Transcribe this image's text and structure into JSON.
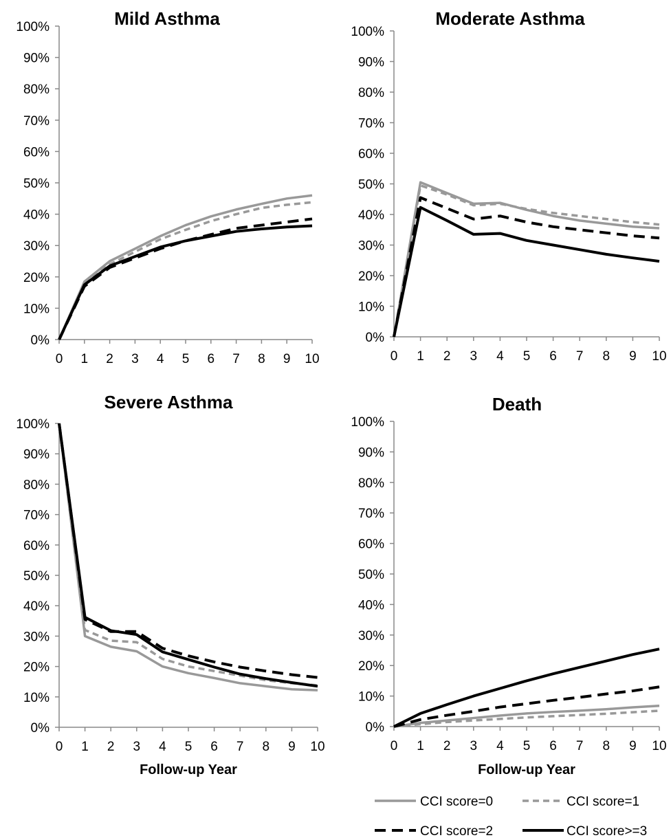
{
  "legend": {
    "entries": [
      {
        "label": "CCI score=0",
        "color": "#999999",
        "dash": "solid"
      },
      {
        "label": "CCI score=1",
        "color": "#999999",
        "dash": "dashed"
      },
      {
        "label": "CCI score=2",
        "color": "#000000",
        "dash": "dashed"
      },
      {
        "label": "CCI score>=3",
        "color": "#000000",
        "dash": "solid"
      }
    ]
  },
  "chart_data": [
    {
      "type": "line",
      "title": "Mild Asthma",
      "xlabel": "",
      "x": [
        0,
        1,
        2,
        3,
        4,
        5,
        6,
        7,
        8,
        9,
        10
      ],
      "ylim": [
        0,
        100
      ],
      "yticks": [
        "0%",
        "10%",
        "20%",
        "30%",
        "40%",
        "50%",
        "60%",
        "70%",
        "80%",
        "90%",
        "100%"
      ],
      "series": [
        {
          "name": "CCI score=0",
          "values": [
            0,
            18.5,
            25,
            29,
            33,
            36.5,
            39.3,
            41.5,
            43.3,
            45,
            46
          ]
        },
        {
          "name": "CCI score=1",
          "values": [
            0,
            18,
            24,
            28,
            32,
            35,
            37.8,
            40,
            42,
            43,
            43.8
          ]
        },
        {
          "name": "CCI score=2",
          "values": [
            0,
            17,
            23,
            26,
            29,
            31.5,
            33.5,
            35.5,
            36.5,
            37.5,
            38.5
          ]
        },
        {
          "name": "CCI score>=3",
          "values": [
            0,
            17.5,
            23.5,
            26.5,
            29.5,
            31.5,
            33,
            34.5,
            35.3,
            35.9,
            36.3
          ]
        }
      ]
    },
    {
      "type": "line",
      "title": "Moderate Asthma",
      "xlabel": "",
      "x": [
        0,
        1,
        2,
        3,
        4,
        5,
        6,
        7,
        8,
        9,
        10
      ],
      "ylim": [
        0,
        100
      ],
      "yticks": [
        "0%",
        "10%",
        "20%",
        "30%",
        "40%",
        "50%",
        "60%",
        "70%",
        "80%",
        "90%",
        "100%"
      ],
      "series": [
        {
          "name": "CCI score=0",
          "values": [
            0,
            50.5,
            47,
            43.5,
            43.8,
            41.5,
            39.5,
            38,
            37,
            36,
            35.5
          ]
        },
        {
          "name": "CCI score=1",
          "values": [
            0,
            49.5,
            46.5,
            43,
            43.5,
            41.8,
            40.5,
            39.5,
            38.5,
            37.5,
            36.7
          ]
        },
        {
          "name": "CCI score=2",
          "values": [
            0,
            45.5,
            42,
            38.5,
            39.5,
            37.5,
            36,
            35,
            34,
            33,
            32.3
          ]
        },
        {
          "name": "CCI score>=3",
          "values": [
            0,
            42.3,
            38,
            33.5,
            33.8,
            31.5,
            30,
            28.5,
            27,
            25.8,
            24.7
          ]
        }
      ]
    },
    {
      "type": "line",
      "title": "Severe Asthma",
      "xlabel": "Follow-up Year",
      "x": [
        0,
        1,
        2,
        3,
        4,
        5,
        6,
        7,
        8,
        9,
        10
      ],
      "ylim": [
        0,
        100
      ],
      "yticks": [
        "0%",
        "10%",
        "20%",
        "30%",
        "40%",
        "50%",
        "60%",
        "70%",
        "80%",
        "90%",
        "100%"
      ],
      "series": [
        {
          "name": "CCI score=0",
          "values": [
            100,
            30,
            26.5,
            25,
            20,
            17.8,
            16.2,
            14.5,
            13.5,
            12.5,
            12.2
          ]
        },
        {
          "name": "CCI score=1",
          "values": [
            100,
            32,
            28.5,
            28,
            22.5,
            20,
            18.5,
            17,
            15.5,
            14.5,
            13.8
          ]
        },
        {
          "name": "CCI score=2",
          "values": [
            100,
            35.5,
            31.5,
            31.5,
            26,
            23.5,
            21.5,
            19.8,
            18.5,
            17.3,
            16.4
          ]
        },
        {
          "name": "CCI score>=3",
          "values": [
            100,
            36.2,
            31.8,
            30.5,
            24.8,
            22.3,
            19.8,
            17.5,
            16,
            14.7,
            13.5
          ]
        }
      ]
    },
    {
      "type": "line",
      "title": "Death",
      "xlabel": "Follow-up Year",
      "x": [
        0,
        1,
        2,
        3,
        4,
        5,
        6,
        7,
        8,
        9,
        10
      ],
      "ylim": [
        0,
        100
      ],
      "yticks": [
        "0%",
        "10%",
        "20%",
        "30%",
        "40%",
        "50%",
        "60%",
        "70%",
        "80%",
        "90%",
        "100%"
      ],
      "series": [
        {
          "name": "CCI score=0",
          "values": [
            0,
            1.2,
            2,
            2.8,
            3.6,
            4.3,
            4.8,
            5.2,
            5.7,
            6.3,
            6.8
          ]
        },
        {
          "name": "CCI score=1",
          "values": [
            0,
            0.8,
            1.5,
            2,
            2.5,
            3,
            3.4,
            3.8,
            4.2,
            4.7,
            5.2
          ]
        },
        {
          "name": "CCI score=2",
          "values": [
            0,
            2.3,
            3.7,
            5,
            6.4,
            7.5,
            8.6,
            9.6,
            10.7,
            11.7,
            13
          ]
        },
        {
          "name": "CCI score>=3",
          "values": [
            0,
            4.3,
            7.2,
            10,
            12.5,
            15,
            17.3,
            19.4,
            21.5,
            23.6,
            25.4
          ]
        }
      ]
    }
  ]
}
